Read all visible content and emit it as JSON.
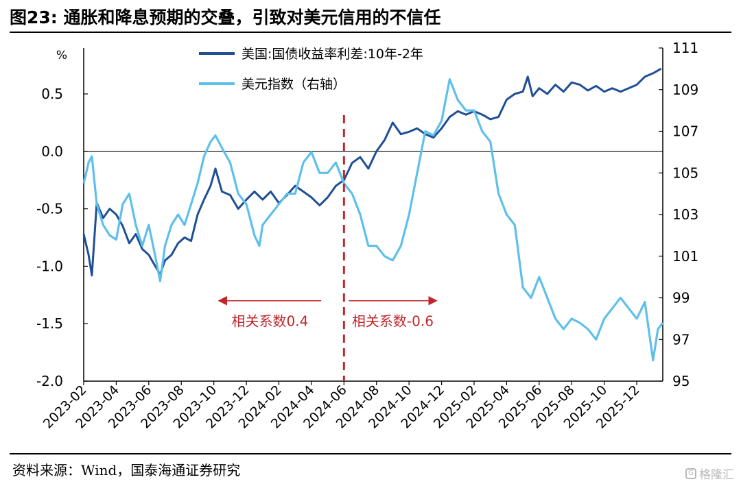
{
  "header": {
    "title": "图23: 通胀和降息预期的交叠，引致对美元信用的不信任"
  },
  "footer": {
    "source": "资料来源：Wind，国泰海通证券研究",
    "watermark": "格隆汇"
  },
  "chart_data": {
    "type": "line",
    "title": "图23: 通胀和降息预期的交叠，引致对美元信用的不信任",
    "left_axis": {
      "unit_label": "%",
      "ylim": [
        -2.0,
        0.9
      ],
      "ticks": [
        0.5,
        0.0,
        -0.5,
        -1.0,
        -1.5,
        -2.0
      ],
      "tick_labels": [
        "0.5",
        "0.0",
        "-0.5",
        "-1.0",
        "-1.5",
        "-2.0"
      ]
    },
    "right_axis": {
      "ylim": [
        95,
        111
      ],
      "ticks": [
        111,
        109,
        107,
        105,
        103,
        101,
        99,
        97,
        95
      ],
      "tick_labels": [
        "111",
        "109",
        "107",
        "105",
        "103",
        "101",
        "99",
        "97",
        "95"
      ]
    },
    "x_axis": {
      "xlim": [
        0,
        35.6
      ],
      "tick_positions": [
        0,
        2,
        4,
        6,
        8,
        10,
        12,
        14,
        16,
        18,
        20,
        22,
        24,
        26,
        28,
        30,
        32,
        34
      ],
      "tick_labels": [
        "2023-02",
        "2023-04",
        "2023-06",
        "2023-08",
        "2023-10",
        "2023-12",
        "2024-02",
        "2024-04",
        "2024-06",
        "2024-08",
        "2024-10",
        "2024-12",
        "2025-02",
        "2025-04",
        "2025-06",
        "2025-08",
        "2025-10",
        "2025-12"
      ]
    },
    "series": [
      {
        "name": "美国:国债收益率利差:10年-2年",
        "axis": "left",
        "color": "#1f4e96",
        "points": [
          [
            0,
            -0.72
          ],
          [
            0.3,
            -0.9
          ],
          [
            0.5,
            -1.08
          ],
          [
            0.8,
            -0.45
          ],
          [
            1.2,
            -0.58
          ],
          [
            1.6,
            -0.5
          ],
          [
            2.0,
            -0.55
          ],
          [
            2.4,
            -0.65
          ],
          [
            2.8,
            -0.8
          ],
          [
            3.2,
            -0.72
          ],
          [
            3.6,
            -0.85
          ],
          [
            4.0,
            -0.9
          ],
          [
            4.4,
            -1.0
          ],
          [
            4.7,
            -1.07
          ],
          [
            5.0,
            -0.95
          ],
          [
            5.4,
            -0.9
          ],
          [
            5.8,
            -0.8
          ],
          [
            6.2,
            -0.75
          ],
          [
            6.6,
            -0.78
          ],
          [
            7.0,
            -0.55
          ],
          [
            7.4,
            -0.42
          ],
          [
            7.8,
            -0.3
          ],
          [
            8.1,
            -0.15
          ],
          [
            8.5,
            -0.35
          ],
          [
            9.0,
            -0.38
          ],
          [
            9.5,
            -0.5
          ],
          [
            10.0,
            -0.42
          ],
          [
            10.5,
            -0.35
          ],
          [
            11.0,
            -0.42
          ],
          [
            11.5,
            -0.35
          ],
          [
            12.0,
            -0.45
          ],
          [
            12.5,
            -0.38
          ],
          [
            13.0,
            -0.3
          ],
          [
            13.5,
            -0.35
          ],
          [
            14.0,
            -0.4
          ],
          [
            14.5,
            -0.47
          ],
          [
            15.0,
            -0.4
          ],
          [
            15.5,
            -0.3
          ],
          [
            16.0,
            -0.25
          ],
          [
            16.5,
            -0.1
          ],
          [
            17.0,
            -0.05
          ],
          [
            17.5,
            -0.15
          ],
          [
            18.0,
            0.0
          ],
          [
            18.5,
            0.1
          ],
          [
            19.0,
            0.25
          ],
          [
            19.5,
            0.15
          ],
          [
            20.0,
            0.17
          ],
          [
            20.5,
            0.2
          ],
          [
            21.0,
            0.15
          ],
          [
            21.5,
            0.12
          ],
          [
            22.0,
            0.2
          ],
          [
            22.5,
            0.3
          ],
          [
            23.0,
            0.35
          ],
          [
            23.5,
            0.32
          ],
          [
            24.0,
            0.35
          ],
          [
            24.5,
            0.32
          ],
          [
            25.0,
            0.28
          ],
          [
            25.5,
            0.3
          ],
          [
            26.0,
            0.45
          ],
          [
            26.5,
            0.5
          ],
          [
            27.0,
            0.52
          ],
          [
            27.3,
            0.65
          ],
          [
            27.6,
            0.48
          ],
          [
            28.0,
            0.55
          ],
          [
            28.5,
            0.5
          ],
          [
            29.0,
            0.58
          ],
          [
            29.5,
            0.52
          ],
          [
            30.0,
            0.6
          ],
          [
            30.5,
            0.58
          ],
          [
            31.0,
            0.53
          ],
          [
            31.5,
            0.57
          ],
          [
            32.0,
            0.52
          ],
          [
            32.5,
            0.55
          ],
          [
            33.0,
            0.52
          ],
          [
            33.5,
            0.55
          ],
          [
            34.0,
            0.58
          ],
          [
            34.5,
            0.65
          ],
          [
            35.0,
            0.68
          ],
          [
            35.5,
            0.72
          ]
        ]
      },
      {
        "name": "美元指数（右轴）",
        "axis": "right",
        "color": "#5ec0ea",
        "points": [
          [
            0,
            104.5
          ],
          [
            0.3,
            105.5
          ],
          [
            0.5,
            105.8
          ],
          [
            0.8,
            103.5
          ],
          [
            1.2,
            102.5
          ],
          [
            1.6,
            102.0
          ],
          [
            2.0,
            101.8
          ],
          [
            2.4,
            103.5
          ],
          [
            2.8,
            104.0
          ],
          [
            3.2,
            102.5
          ],
          [
            3.6,
            101.5
          ],
          [
            4.0,
            102.5
          ],
          [
            4.4,
            101.0
          ],
          [
            4.7,
            99.8
          ],
          [
            5.0,
            101.5
          ],
          [
            5.4,
            102.5
          ],
          [
            5.8,
            103.0
          ],
          [
            6.2,
            102.5
          ],
          [
            6.6,
            103.5
          ],
          [
            7.0,
            104.5
          ],
          [
            7.4,
            105.8
          ],
          [
            7.8,
            106.5
          ],
          [
            8.1,
            106.8
          ],
          [
            8.5,
            106.2
          ],
          [
            9.0,
            105.5
          ],
          [
            9.5,
            104.0
          ],
          [
            10.0,
            103.5
          ],
          [
            10.5,
            102.0
          ],
          [
            10.8,
            101.5
          ],
          [
            11.0,
            102.5
          ],
          [
            11.5,
            103.0
          ],
          [
            12.0,
            103.5
          ],
          [
            12.5,
            104.0
          ],
          [
            13.0,
            104.0
          ],
          [
            13.5,
            105.5
          ],
          [
            14.0,
            106.0
          ],
          [
            14.5,
            105.0
          ],
          [
            15.0,
            105.0
          ],
          [
            15.5,
            105.5
          ],
          [
            16.0,
            104.5
          ],
          [
            16.5,
            104.0
          ],
          [
            17.0,
            103.0
          ],
          [
            17.5,
            101.5
          ],
          [
            18.0,
            101.5
          ],
          [
            18.5,
            101.0
          ],
          [
            19.0,
            100.8
          ],
          [
            19.5,
            101.5
          ],
          [
            20.0,
            103.0
          ],
          [
            20.5,
            105.0
          ],
          [
            20.8,
            106.2
          ],
          [
            21.0,
            107.0
          ],
          [
            21.5,
            106.8
          ],
          [
            22.0,
            107.5
          ],
          [
            22.5,
            109.5
          ],
          [
            23.0,
            108.5
          ],
          [
            23.5,
            108.0
          ],
          [
            24.0,
            108.0
          ],
          [
            24.5,
            107.0
          ],
          [
            25.0,
            106.5
          ],
          [
            25.5,
            104.0
          ],
          [
            26.0,
            103.0
          ],
          [
            26.5,
            102.5
          ],
          [
            27.0,
            99.5
          ],
          [
            27.5,
            99.0
          ],
          [
            28.0,
            100.0
          ],
          [
            28.5,
            99.0
          ],
          [
            29.0,
            98.0
          ],
          [
            29.5,
            97.5
          ],
          [
            30.0,
            98.0
          ],
          [
            30.5,
            97.8
          ],
          [
            31.0,
            97.5
          ],
          [
            31.5,
            97.0
          ],
          [
            32.0,
            98.0
          ],
          [
            32.5,
            98.5
          ],
          [
            33.0,
            99.0
          ],
          [
            33.5,
            98.5
          ],
          [
            34.0,
            98.0
          ],
          [
            34.5,
            98.8
          ],
          [
            35.0,
            96.0
          ],
          [
            35.3,
            97.5
          ],
          [
            35.6,
            97.8
          ]
        ]
      }
    ],
    "legend": {
      "placement": "top-center"
    },
    "zero_line": 0.0,
    "annotations": {
      "divider_x": 16.0,
      "left_arrow_label": "相关系数0.4",
      "right_arrow_label": "相关系数-0.6",
      "left_arrow_range": [
        8.3,
        14.6
      ],
      "right_arrow_range": [
        16.3,
        21.7
      ],
      "arrow_y": -1.3,
      "label_y": -1.52,
      "color": "#c0262a"
    }
  }
}
